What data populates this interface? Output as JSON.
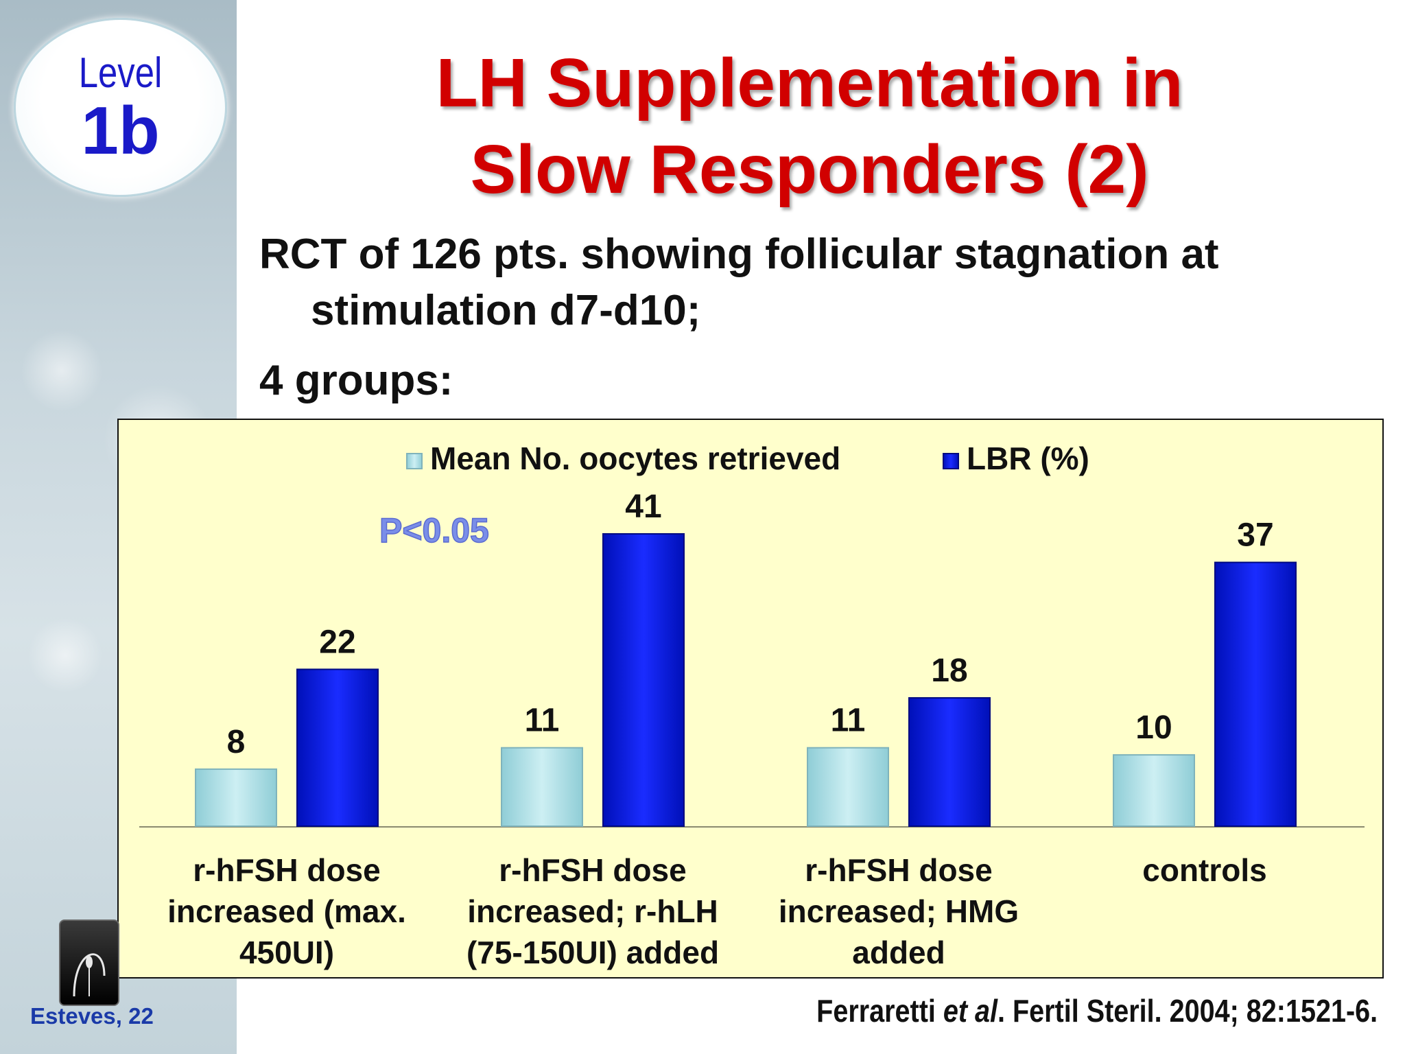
{
  "badge": {
    "word": "Level",
    "value": "1b"
  },
  "title": {
    "line1": "LH Supplementation in",
    "line2": "Slow Responders (2)"
  },
  "bullets": [
    "RCT of 126 pts. showing follicular stagnation at stimulation d7-d10;",
    "4 groups:"
  ],
  "chart_data": {
    "type": "bar",
    "categories": [
      [
        "r-hFSH dose",
        "increased (max.",
        "450UI)"
      ],
      [
        "r-hFSH dose",
        "increased; r-hLH",
        "(75-150UI) added"
      ],
      [
        "r-hFSH dose",
        "increased; HMG",
        "added"
      ],
      [
        "controls"
      ]
    ],
    "series": [
      {
        "name": "Mean No. oocytes retrieved",
        "values": [
          8,
          11,
          11,
          10
        ],
        "color": "#a8dde4"
      },
      {
        "name": "LBR (%)",
        "values": [
          22,
          41,
          18,
          37
        ],
        "color": "#0a1ae0"
      }
    ],
    "ylim": [
      0,
      41
    ],
    "legend": "top",
    "grid": false,
    "annotation": {
      "text": "P<0.05",
      "color": "#7a8ee8"
    }
  },
  "footer": {
    "author": "Esteves, 22",
    "citation_prefix": "Ferraretti ",
    "citation_italic": "et al",
    "citation_suffix": ". Fertil Steril. 2004; 82:1521-6."
  }
}
